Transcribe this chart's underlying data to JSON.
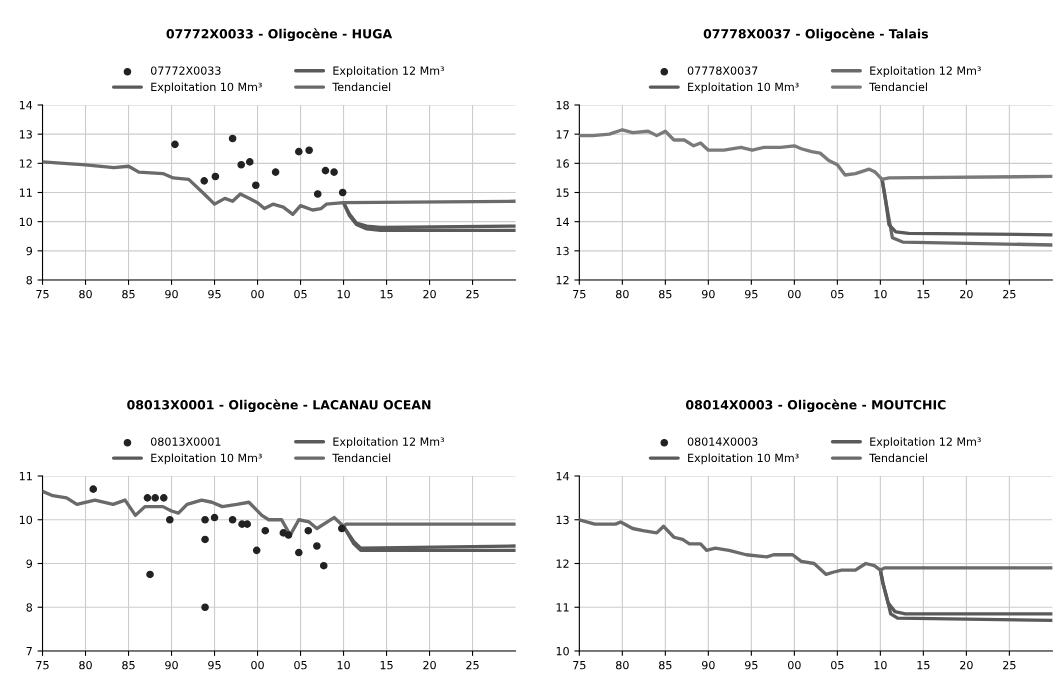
{
  "chart_data": [
    {
      "type": "line",
      "title": "07772X0033 - Oligocène - HUGA",
      "legend": "top",
      "grid": true,
      "xlim": [
        1975,
        2030
      ],
      "xticks": [
        {
          "value": 1975,
          "label": "75"
        },
        {
          "value": 1980,
          "label": "80"
        },
        {
          "value": 1985,
          "label": "85"
        },
        {
          "value": 1990,
          "label": "90"
        },
        {
          "value": 1995,
          "label": "95"
        },
        {
          "value": 2000,
          "label": "00"
        },
        {
          "value": 2005,
          "label": "05"
        },
        {
          "value": 2010,
          "label": "10"
        },
        {
          "value": 2015,
          "label": "15"
        },
        {
          "value": 2020,
          "label": "20"
        },
        {
          "value": 2025,
          "label": "25"
        }
      ],
      "ylim": [
        8,
        14
      ],
      "yticks": [
        8,
        9,
        10,
        11,
        12,
        13,
        14
      ],
      "series": [
        {
          "name": "07772X0033",
          "type": "scatter",
          "marker": "circle",
          "color": "#222222",
          "x": [
            1990.4,
            1993.8,
            1995.1,
            1997.1,
            1998.1,
            1999.1,
            1999.8,
            2002.1,
            2004.8,
            2006.0,
            2007.0,
            2007.9,
            2008.9,
            2009.9
          ],
          "values": [
            12.65,
            11.4,
            11.55,
            12.85,
            11.95,
            12.05,
            11.25,
            11.7,
            12.4,
            12.45,
            10.95,
            11.75,
            11.7,
            11.0
          ]
        },
        {
          "name": "Exploitation 12 Mm³",
          "color": "#5a5a5a",
          "x": [
            2010,
            2010.7,
            2011.5,
            2012.7,
            2014.3,
            2030
          ],
          "values": [
            10.65,
            10.2,
            9.9,
            9.75,
            9.7,
            9.7
          ]
        },
        {
          "name": "Exploitation 10 Mm³",
          "color": "#5a5a5a",
          "x": [
            2010,
            2010.7,
            2011.5,
            2012.7,
            2014.3,
            2030
          ],
          "values": [
            10.65,
            10.25,
            9.95,
            9.85,
            9.8,
            9.85
          ]
        },
        {
          "name": "Tendanciel",
          "color": "#6a6a6a",
          "x": [
            1975,
            1980,
            1983.3,
            1985,
            1986.2,
            1989,
            1990.2,
            1992,
            1993.8,
            1995,
            1996.2,
            1997.1,
            1998,
            1999,
            2000,
            2000.8,
            2001.8,
            2003,
            2004.1,
            2005,
            2006.4,
            2007.4,
            2008,
            2010,
            2030
          ],
          "values": [
            12.05,
            11.95,
            11.85,
            11.9,
            11.7,
            11.65,
            11.5,
            11.45,
            10.95,
            10.6,
            10.8,
            10.7,
            10.95,
            10.8,
            10.65,
            10.45,
            10.6,
            10.5,
            10.25,
            10.55,
            10.4,
            10.45,
            10.6,
            10.65,
            10.7
          ]
        }
      ]
    },
    {
      "type": "line",
      "title": "07778X0037 - Oligocène - Talais",
      "legend": "top",
      "grid": true,
      "xlim": [
        1975,
        2030
      ],
      "xticks": [
        {
          "value": 1975,
          "label": "75"
        },
        {
          "value": 1980,
          "label": "80"
        },
        {
          "value": 1985,
          "label": "85"
        },
        {
          "value": 1990,
          "label": "90"
        },
        {
          "value": 1995,
          "label": "95"
        },
        {
          "value": 2000,
          "label": "00"
        },
        {
          "value": 2005,
          "label": "05"
        },
        {
          "value": 2010,
          "label": "10"
        },
        {
          "value": 2015,
          "label": "15"
        },
        {
          "value": 2020,
          "label": "20"
        },
        {
          "value": 2025,
          "label": "25"
        }
      ],
      "ylim": [
        12,
        18
      ],
      "yticks": [
        12,
        13,
        14,
        15,
        16,
        17,
        18
      ],
      "series": [
        {
          "name": "07778X0037",
          "type": "scatter",
          "marker": "circle",
          "color": "#222222"
        },
        {
          "name": "Exploitation 12 Mm³",
          "color": "#6a6a6a",
          "x": [
            2010.2,
            2010.6,
            2011.4,
            2012.6,
            2030
          ],
          "values": [
            15.45,
            14.75,
            13.45,
            13.3,
            13.2
          ]
        },
        {
          "name": "Exploitation 10 Mm³",
          "color": "#5a5a5a",
          "x": [
            2010.2,
            2010.6,
            2011,
            2011.8,
            2013.3,
            2030
          ],
          "values": [
            15.45,
            14.75,
            13.9,
            13.65,
            13.6,
            13.55
          ]
        },
        {
          "name": "Tendanciel",
          "color": "#7a7a7a",
          "x": [
            1975,
            1976.6,
            1978.5,
            1980,
            1981.2,
            1983,
            1984,
            1985,
            1986,
            1987.2,
            1988.3,
            1989.1,
            1990,
            1991.8,
            1993.8,
            1995.1,
            1996.5,
            1998.4,
            2000,
            2000.8,
            2002,
            2003,
            2004,
            2005,
            2005.9,
            2007.1,
            2008.7,
            2009.4,
            2010.2,
            2011,
            2030
          ],
          "values": [
            16.95,
            16.95,
            17.0,
            17.15,
            17.05,
            17.1,
            16.95,
            17.1,
            16.8,
            16.8,
            16.6,
            16.7,
            16.45,
            16.45,
            16.55,
            16.45,
            16.55,
            16.55,
            16.6,
            16.5,
            16.4,
            16.35,
            16.1,
            15.95,
            15.6,
            15.65,
            15.8,
            15.7,
            15.45,
            15.5,
            15.55
          ]
        }
      ]
    },
    {
      "type": "line",
      "title": "08013X0001 - Oligocène - LACANAU OCEAN",
      "legend": "top",
      "grid": true,
      "xlim": [
        1975,
        2030
      ],
      "xticks": [
        {
          "value": 1975,
          "label": "75"
        },
        {
          "value": 1980,
          "label": "80"
        },
        {
          "value": 1985,
          "label": "85"
        },
        {
          "value": 1990,
          "label": "90"
        },
        {
          "value": 1995,
          "label": "95"
        },
        {
          "value": 2000,
          "label": "00"
        },
        {
          "value": 2005,
          "label": "05"
        },
        {
          "value": 2010,
          "label": "10"
        },
        {
          "value": 2015,
          "label": "15"
        },
        {
          "value": 2020,
          "label": "20"
        },
        {
          "value": 2025,
          "label": "25"
        }
      ],
      "ylim": [
        7,
        11
      ],
      "yticks": [
        7,
        8,
        9,
        10,
        11
      ],
      "series": [
        {
          "name": "08013X0001",
          "type": "scatter",
          "marker": "circle",
          "color": "#222222",
          "x": [
            1980.9,
            1987.2,
            1988.1,
            1989.1,
            1987.5,
            1989.8,
            1993.9,
            1993.9,
            1993.9,
            1995,
            1997.1,
            1998.2,
            1998.8,
            1999.9,
            2000.9,
            2003,
            2003.6,
            2004.8,
            2005.9,
            2006.9,
            2007.7,
            2009.8
          ],
          "values": [
            10.7,
            10.5,
            10.5,
            10.5,
            8.75,
            10.0,
            10.0,
            9.55,
            8.0,
            10.05,
            10.0,
            9.9,
            9.9,
            9.3,
            9.75,
            9.7,
            9.65,
            9.25,
            9.75,
            9.4,
            8.95,
            9.8
          ]
        },
        {
          "name": "Exploitation 12 Mm³",
          "color": "#5a5a5a",
          "x": [
            2010,
            2011.2,
            2012,
            2030
          ],
          "values": [
            9.85,
            9.45,
            9.3,
            9.3
          ]
        },
        {
          "name": "Exploitation 10 Mm³",
          "color": "#5a5a5a",
          "x": [
            2010,
            2011.2,
            2012,
            2030
          ],
          "values": [
            9.85,
            9.5,
            9.35,
            9.4
          ]
        },
        {
          "name": "Tendanciel",
          "color": "#6a6a6a",
          "x": [
            1975,
            1976.2,
            1977.8,
            1979,
            1981.1,
            1983.2,
            1984.6,
            1985.8,
            1986.9,
            1989,
            1990,
            1990.8,
            1991.8,
            1993.5,
            1994.7,
            1995.9,
            1997.6,
            1999,
            2000.5,
            2001.3,
            2002.8,
            2003.8,
            2004.8,
            2006,
            2006.9,
            2008.9,
            2010,
            2010.3,
            2030
          ],
          "values": [
            10.65,
            10.55,
            10.5,
            10.35,
            10.45,
            10.35,
            10.45,
            10.1,
            10.3,
            10.3,
            10.2,
            10.15,
            10.35,
            10.45,
            10.4,
            10.3,
            10.35,
            10.4,
            10.1,
            10.0,
            10.0,
            9.65,
            10.0,
            9.95,
            9.8,
            10.05,
            9.85,
            9.9,
            9.9
          ]
        }
      ]
    },
    {
      "type": "line",
      "title": "08014X0003 - Oligocène - MOUTCHIC",
      "legend": "top",
      "grid": true,
      "xlim": [
        1975,
        2030
      ],
      "xticks": [
        {
          "value": 1975,
          "label": "75"
        },
        {
          "value": 1980,
          "label": "80"
        },
        {
          "value": 1985,
          "label": "85"
        },
        {
          "value": 1990,
          "label": "90"
        },
        {
          "value": 1995,
          "label": "95"
        },
        {
          "value": 2000,
          "label": "00"
        },
        {
          "value": 2005,
          "label": "05"
        },
        {
          "value": 2010,
          "label": "10"
        },
        {
          "value": 2015,
          "label": "15"
        },
        {
          "value": 2020,
          "label": "20"
        },
        {
          "value": 2025,
          "label": "25"
        }
      ],
      "ylim": [
        10,
        14
      ],
      "yticks": [
        10,
        11,
        12,
        13,
        14
      ],
      "series": [
        {
          "name": "08014X0003",
          "type": "scatter",
          "marker": "circle",
          "color": "#222222"
        },
        {
          "name": "Exploitation 12 Mm³",
          "color": "#5a5a5a",
          "x": [
            2010,
            2010.3,
            2010.9,
            2011.2,
            2012,
            2030
          ],
          "values": [
            11.85,
            11.55,
            11.1,
            10.85,
            10.75,
            10.7
          ]
        },
        {
          "name": "Exploitation 10 Mm³",
          "color": "#5a5a5a",
          "x": [
            2010,
            2010.3,
            2010.9,
            2011.7,
            2012.9,
            2030
          ],
          "values": [
            11.85,
            11.55,
            11.1,
            10.9,
            10.85,
            10.85
          ]
        },
        {
          "name": "Tendanciel",
          "color": "#6a6a6a",
          "x": [
            1975,
            1976.8,
            1979.2,
            1979.8,
            1981.2,
            1982.4,
            1984,
            1984.8,
            1986,
            1987,
            1987.8,
            1989.1,
            1989.8,
            1990.8,
            1992.4,
            1994.4,
            1996.8,
            1997.6,
            1999.8,
            2000.8,
            2002.3,
            2003.7,
            2004.5,
            2005.5,
            2007.1,
            2008.3,
            2009.3,
            2010,
            2010.5,
            2030
          ],
          "values": [
            13.0,
            12.9,
            12.9,
            12.95,
            12.8,
            12.75,
            12.7,
            12.85,
            12.6,
            12.55,
            12.45,
            12.45,
            12.3,
            12.35,
            12.3,
            12.2,
            12.15,
            12.2,
            12.2,
            12.05,
            12.0,
            11.75,
            11.8,
            11.85,
            11.85,
            12.0,
            11.95,
            11.85,
            11.9,
            11.9
          ]
        }
      ]
    }
  ]
}
